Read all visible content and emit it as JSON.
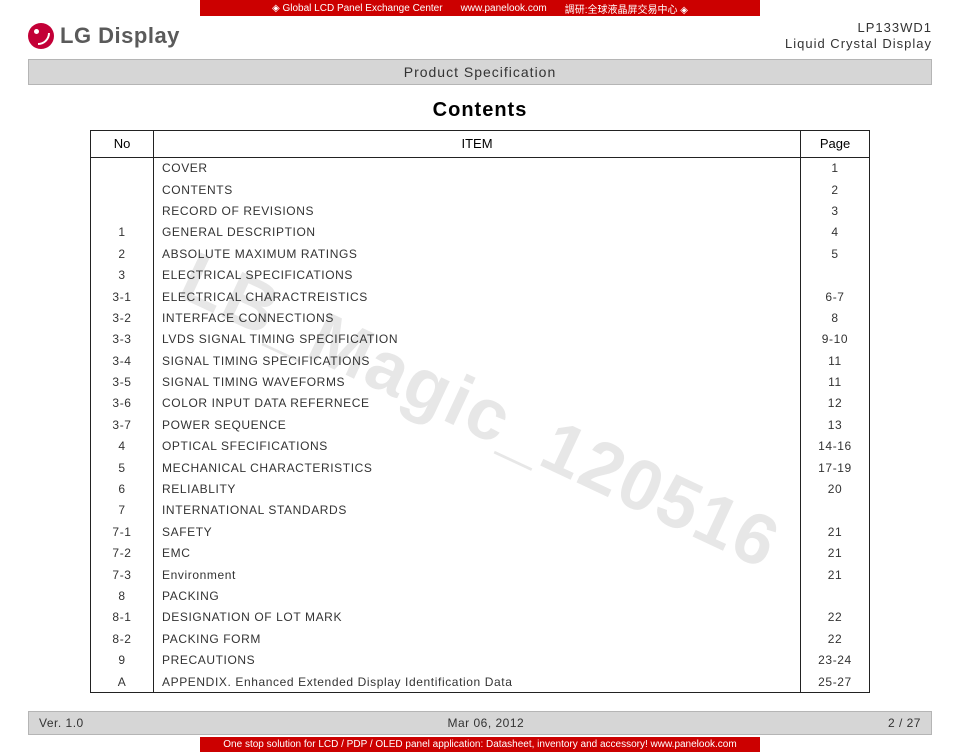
{
  "top_banner": {
    "left": "◈  Global LCD Panel Exchange Center",
    "mid": "www.panelook.com",
    "right": "調研:全球液晶屏交易中心  ◈"
  },
  "header": {
    "brand": "LG Display",
    "model_line1": "LP133WD1",
    "model_line2": "Liquid Crystal Display",
    "spec_bar": "Product Specification"
  },
  "contents_title": "Contents",
  "watermark": "LB_Magic_120516",
  "table": {
    "columns": [
      "No",
      "ITEM",
      "Page"
    ],
    "rows": [
      {
        "no": "",
        "item": "COVER",
        "page": "1"
      },
      {
        "no": "",
        "item": "CONTENTS",
        "page": "2"
      },
      {
        "no": "",
        "item": "RECORD OF REVISIONS",
        "page": "3"
      },
      {
        "no": "1",
        "item": "GENERAL DESCRIPTION",
        "page": "4"
      },
      {
        "no": "2",
        "item": "ABSOLUTE MAXIMUM RATINGS",
        "page": "5"
      },
      {
        "no": "3",
        "item": "ELECTRICAL SPECIFICATIONS",
        "page": ""
      },
      {
        "no": "3-1",
        "item": "ELECTRICAL CHARACTREISTICS",
        "page": "6-7"
      },
      {
        "no": "3-2",
        "item": "INTERFACE CONNECTIONS",
        "page": "8"
      },
      {
        "no": "3-3",
        "item": "LVDS SIGNAL TIMING SPECIFICATION",
        "page": "9-10"
      },
      {
        "no": "3-4",
        "item": "SIGNAL TIMING SPECIFICATIONS",
        "page": "11"
      },
      {
        "no": "3-5",
        "item": "SIGNAL TIMING WAVEFORMS",
        "page": "11"
      },
      {
        "no": "3-6",
        "item": "COLOR INPUT DATA REFERNECE",
        "page": "12"
      },
      {
        "no": "3-7",
        "item": "POWER SEQUENCE",
        "page": "13"
      },
      {
        "no": "4",
        "item": "OPTICAL SFECIFICATIONS",
        "page": "14-16"
      },
      {
        "no": "5",
        "item": "MECHANICAL CHARACTERISTICS",
        "page": "17-19"
      },
      {
        "no": "6",
        "item": "RELIABLITY",
        "page": "20"
      },
      {
        "no": "7",
        "item": "INTERNATIONAL STANDARDS",
        "page": ""
      },
      {
        "no": "7-1",
        "item": "SAFETY",
        "page": "21"
      },
      {
        "no": "7-2",
        "item": "EMC",
        "page": "21"
      },
      {
        "no": "7-3",
        "item": "Environment",
        "page": "21"
      },
      {
        "no": "8",
        "item": "PACKING",
        "page": ""
      },
      {
        "no": "8-1",
        "item": "DESIGNATION OF LOT MARK",
        "page": "22"
      },
      {
        "no": "8-2",
        "item": "PACKING FORM",
        "page": "22"
      },
      {
        "no": "9",
        "item": "PRECAUTIONS",
        "page": "23-24"
      },
      {
        "no": "A",
        "item": "APPENDIX. Enhanced Extended Display Identification Data",
        "page": "25-27"
      }
    ]
  },
  "footer": {
    "version": "Ver. 1.0",
    "date": "Mar 06, 2012",
    "page": "2 / 27"
  },
  "bottom_banner": "One stop solution for LCD / PDP / OLED panel application: Datasheet, inventory and accessory!  www.panelook.com"
}
